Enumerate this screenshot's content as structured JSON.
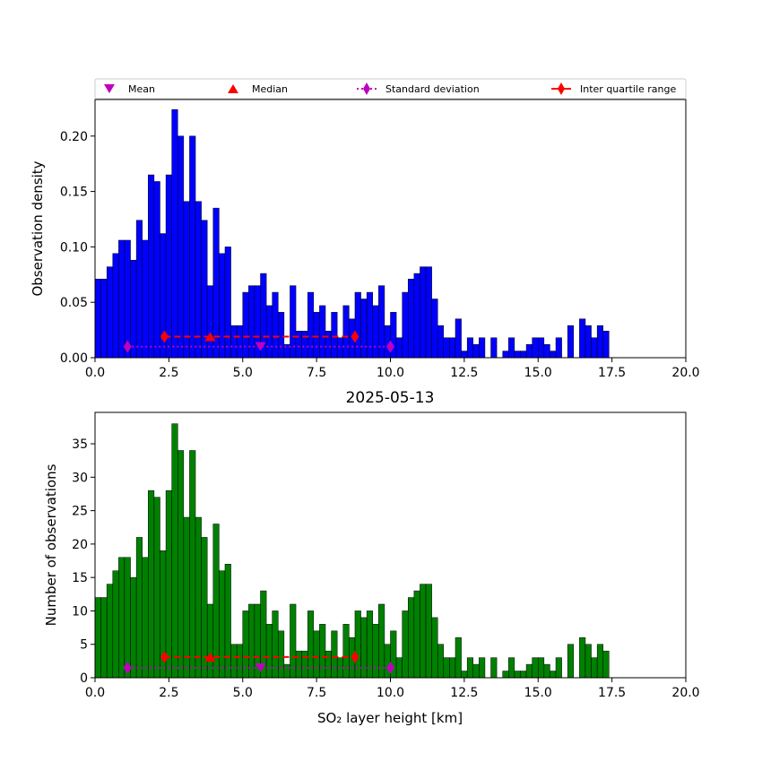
{
  "colors": {
    "density_bars": "#0000ff",
    "count_bars": "#008000",
    "mean": "#bf00bf",
    "median": "#ff0000",
    "stdev": "#bf00bf",
    "iqr": "#ff0000"
  },
  "legend": {
    "mean": "Mean",
    "median": "Median",
    "stdev": "Standard deviation",
    "iqr": "Inter quartile range"
  },
  "chart_data": [
    {
      "type": "bar",
      "panel": "top",
      "title": "",
      "xlabel": "",
      "ylabel": "Observation density",
      "xlim": [
        0,
        20
      ],
      "ylim": [
        0,
        0.233
      ],
      "xticks": [
        "0.0",
        "2.5",
        "5.0",
        "7.5",
        "10.0",
        "12.5",
        "15.0",
        "17.5",
        "20.0"
      ],
      "yticks": [
        "0.00",
        "0.05",
        "0.10",
        "0.15",
        "0.20"
      ],
      "bin_width": 0.2,
      "bin_start": 0,
      "values": [
        0.071,
        0.071,
        0.082,
        0.094,
        0.106,
        0.106,
        0.088,
        0.124,
        0.106,
        0.165,
        0.159,
        0.112,
        0.165,
        0.224,
        0.2,
        0.141,
        0.2,
        0.141,
        0.124,
        0.065,
        0.135,
        0.094,
        0.1,
        0.029,
        0.029,
        0.059,
        0.065,
        0.065,
        0.076,
        0.047,
        0.059,
        0.041,
        0.012,
        0.065,
        0.024,
        0.024,
        0.059,
        0.041,
        0.047,
        0.024,
        0.041,
        0.018,
        0.047,
        0.035,
        0.059,
        0.053,
        0.059,
        0.047,
        0.065,
        0.029,
        0.041,
        0.018,
        0.059,
        0.071,
        0.076,
        0.082,
        0.082,
        0.053,
        0.029,
        0.018,
        0.018,
        0.035,
        0.006,
        0.018,
        0.012,
        0.018,
        0,
        0.018,
        0,
        0.006,
        0.018,
        0.006,
        0.006,
        0.012,
        0.018,
        0.018,
        0.012,
        0.006,
        0.018,
        0,
        0.029,
        0,
        0.035,
        0.029,
        0.018,
        0.029,
        0.024
      ],
      "stats": {
        "mean": 5.6,
        "median": 3.9,
        "stdev": [
          1.1,
          10.0
        ],
        "iqr": [
          2.35,
          8.8
        ],
        "mean_y": 0.01,
        "median_y": 0.019,
        "stdev_y": 0.01,
        "iqr_y": 0.019
      }
    },
    {
      "type": "bar",
      "panel": "bottom",
      "title": "2025-05-13",
      "xlabel": "SO₂ layer height [km]",
      "ylabel": "Number of observations",
      "xlim": [
        0,
        20
      ],
      "ylim": [
        0,
        39.7
      ],
      "xticks": [
        "0.0",
        "2.5",
        "5.0",
        "7.5",
        "10.0",
        "12.5",
        "15.0",
        "17.5",
        "20.0"
      ],
      "yticks": [
        "0",
        "5",
        "10",
        "15",
        "20",
        "25",
        "30",
        "35"
      ],
      "bin_width": 0.2,
      "bin_start": 0,
      "values": [
        12,
        12,
        14,
        16,
        18,
        18,
        15,
        21,
        18,
        28,
        27,
        19,
        28,
        38,
        34,
        24,
        34,
        24,
        21,
        11,
        23,
        16,
        17,
        5,
        5,
        10,
        11,
        11,
        13,
        8,
        10,
        7,
        2,
        11,
        4,
        4,
        10,
        7,
        8,
        4,
        7,
        3,
        8,
        6,
        10,
        9,
        10,
        8,
        11,
        5,
        7,
        3,
        10,
        12,
        13,
        14,
        14,
        9,
        5,
        3,
        3,
        6,
        1,
        3,
        2,
        3,
        0,
        3,
        0,
        1,
        3,
        1,
        1,
        2,
        3,
        3,
        2,
        1,
        3,
        0,
        5,
        0,
        6,
        5,
        3,
        5,
        4
      ],
      "stats": {
        "mean": 5.6,
        "median": 3.9,
        "stdev": [
          1.1,
          10.0
        ],
        "iqr": [
          2.35,
          8.8
        ],
        "mean_y": 1.5,
        "median_y": 3.1,
        "stdev_y": 1.5,
        "iqr_y": 3.1
      }
    }
  ]
}
